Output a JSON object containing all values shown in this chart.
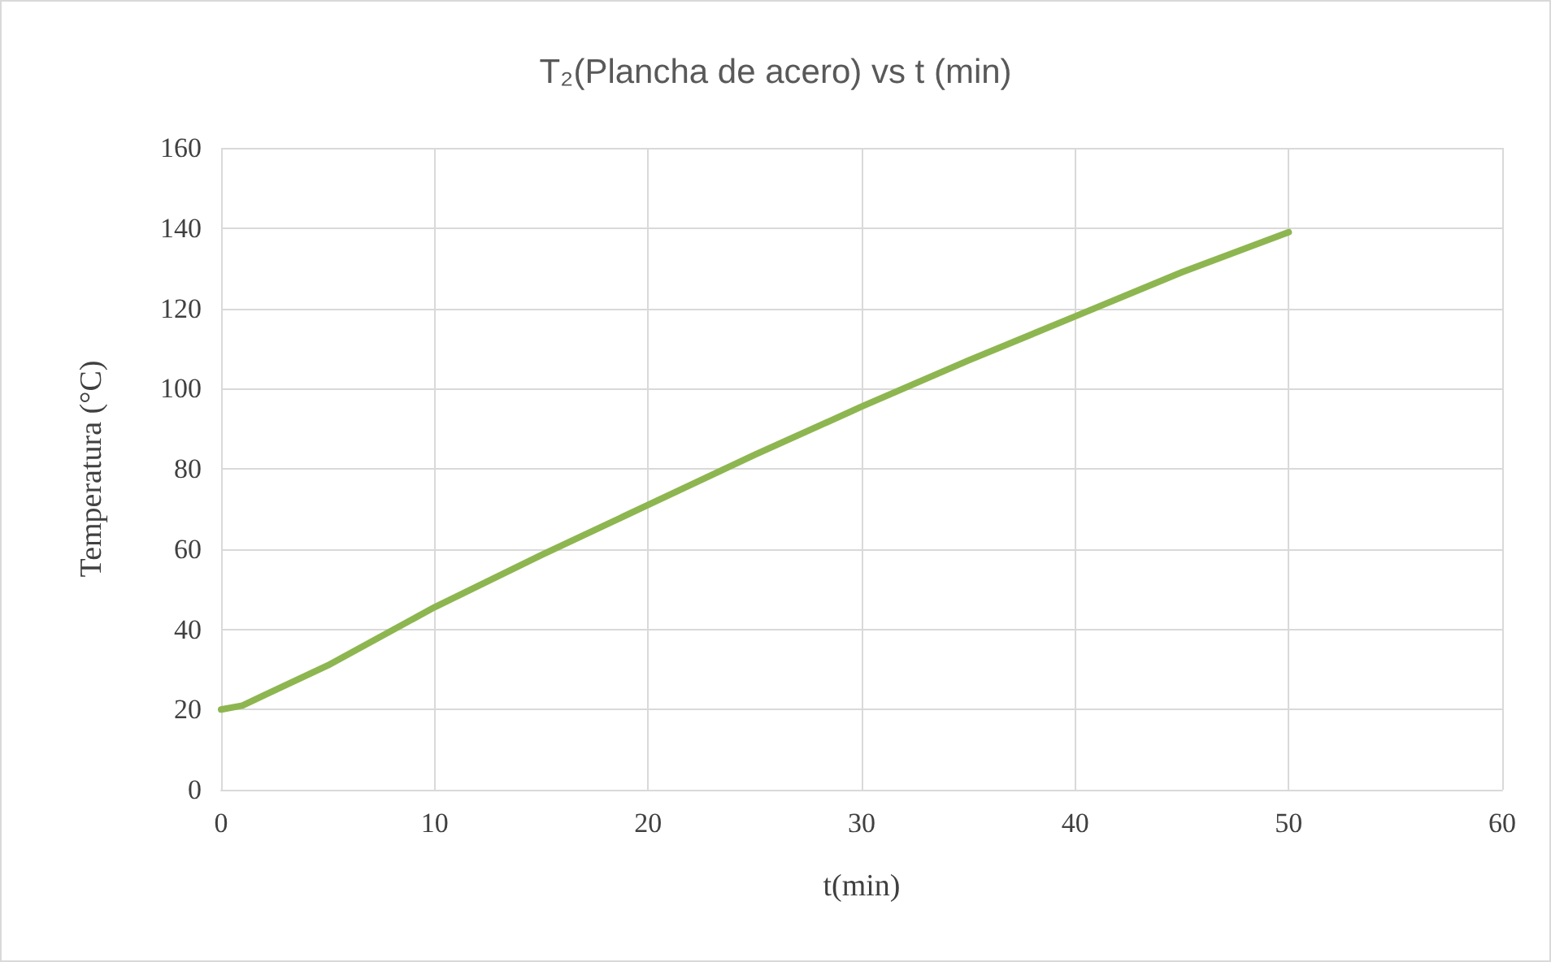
{
  "chart_data": {
    "type": "line",
    "title": "T₂(Plancha de acero) vs t (min)",
    "xlabel": "t(min)",
    "ylabel": "Temperatura (°C)",
    "x": [
      0,
      1,
      2,
      5,
      10,
      15,
      20,
      25,
      30,
      35,
      40,
      45,
      50
    ],
    "series": [
      {
        "color": "#8db650",
        "values": [
          20,
          21,
          23.5,
          31,
          45.5,
          58.5,
          71,
          83.5,
          95.5,
          107,
          118,
          129,
          139
        ]
      }
    ],
    "xlim": [
      0,
      60
    ],
    "xticks": [
      0,
      10,
      20,
      30,
      40,
      50,
      60
    ],
    "ylim": [
      0,
      160
    ],
    "yticks": [
      0,
      20,
      40,
      60,
      80,
      100,
      120,
      140,
      160
    ],
    "grid": true,
    "marker": "none",
    "line_style": "solid"
  }
}
